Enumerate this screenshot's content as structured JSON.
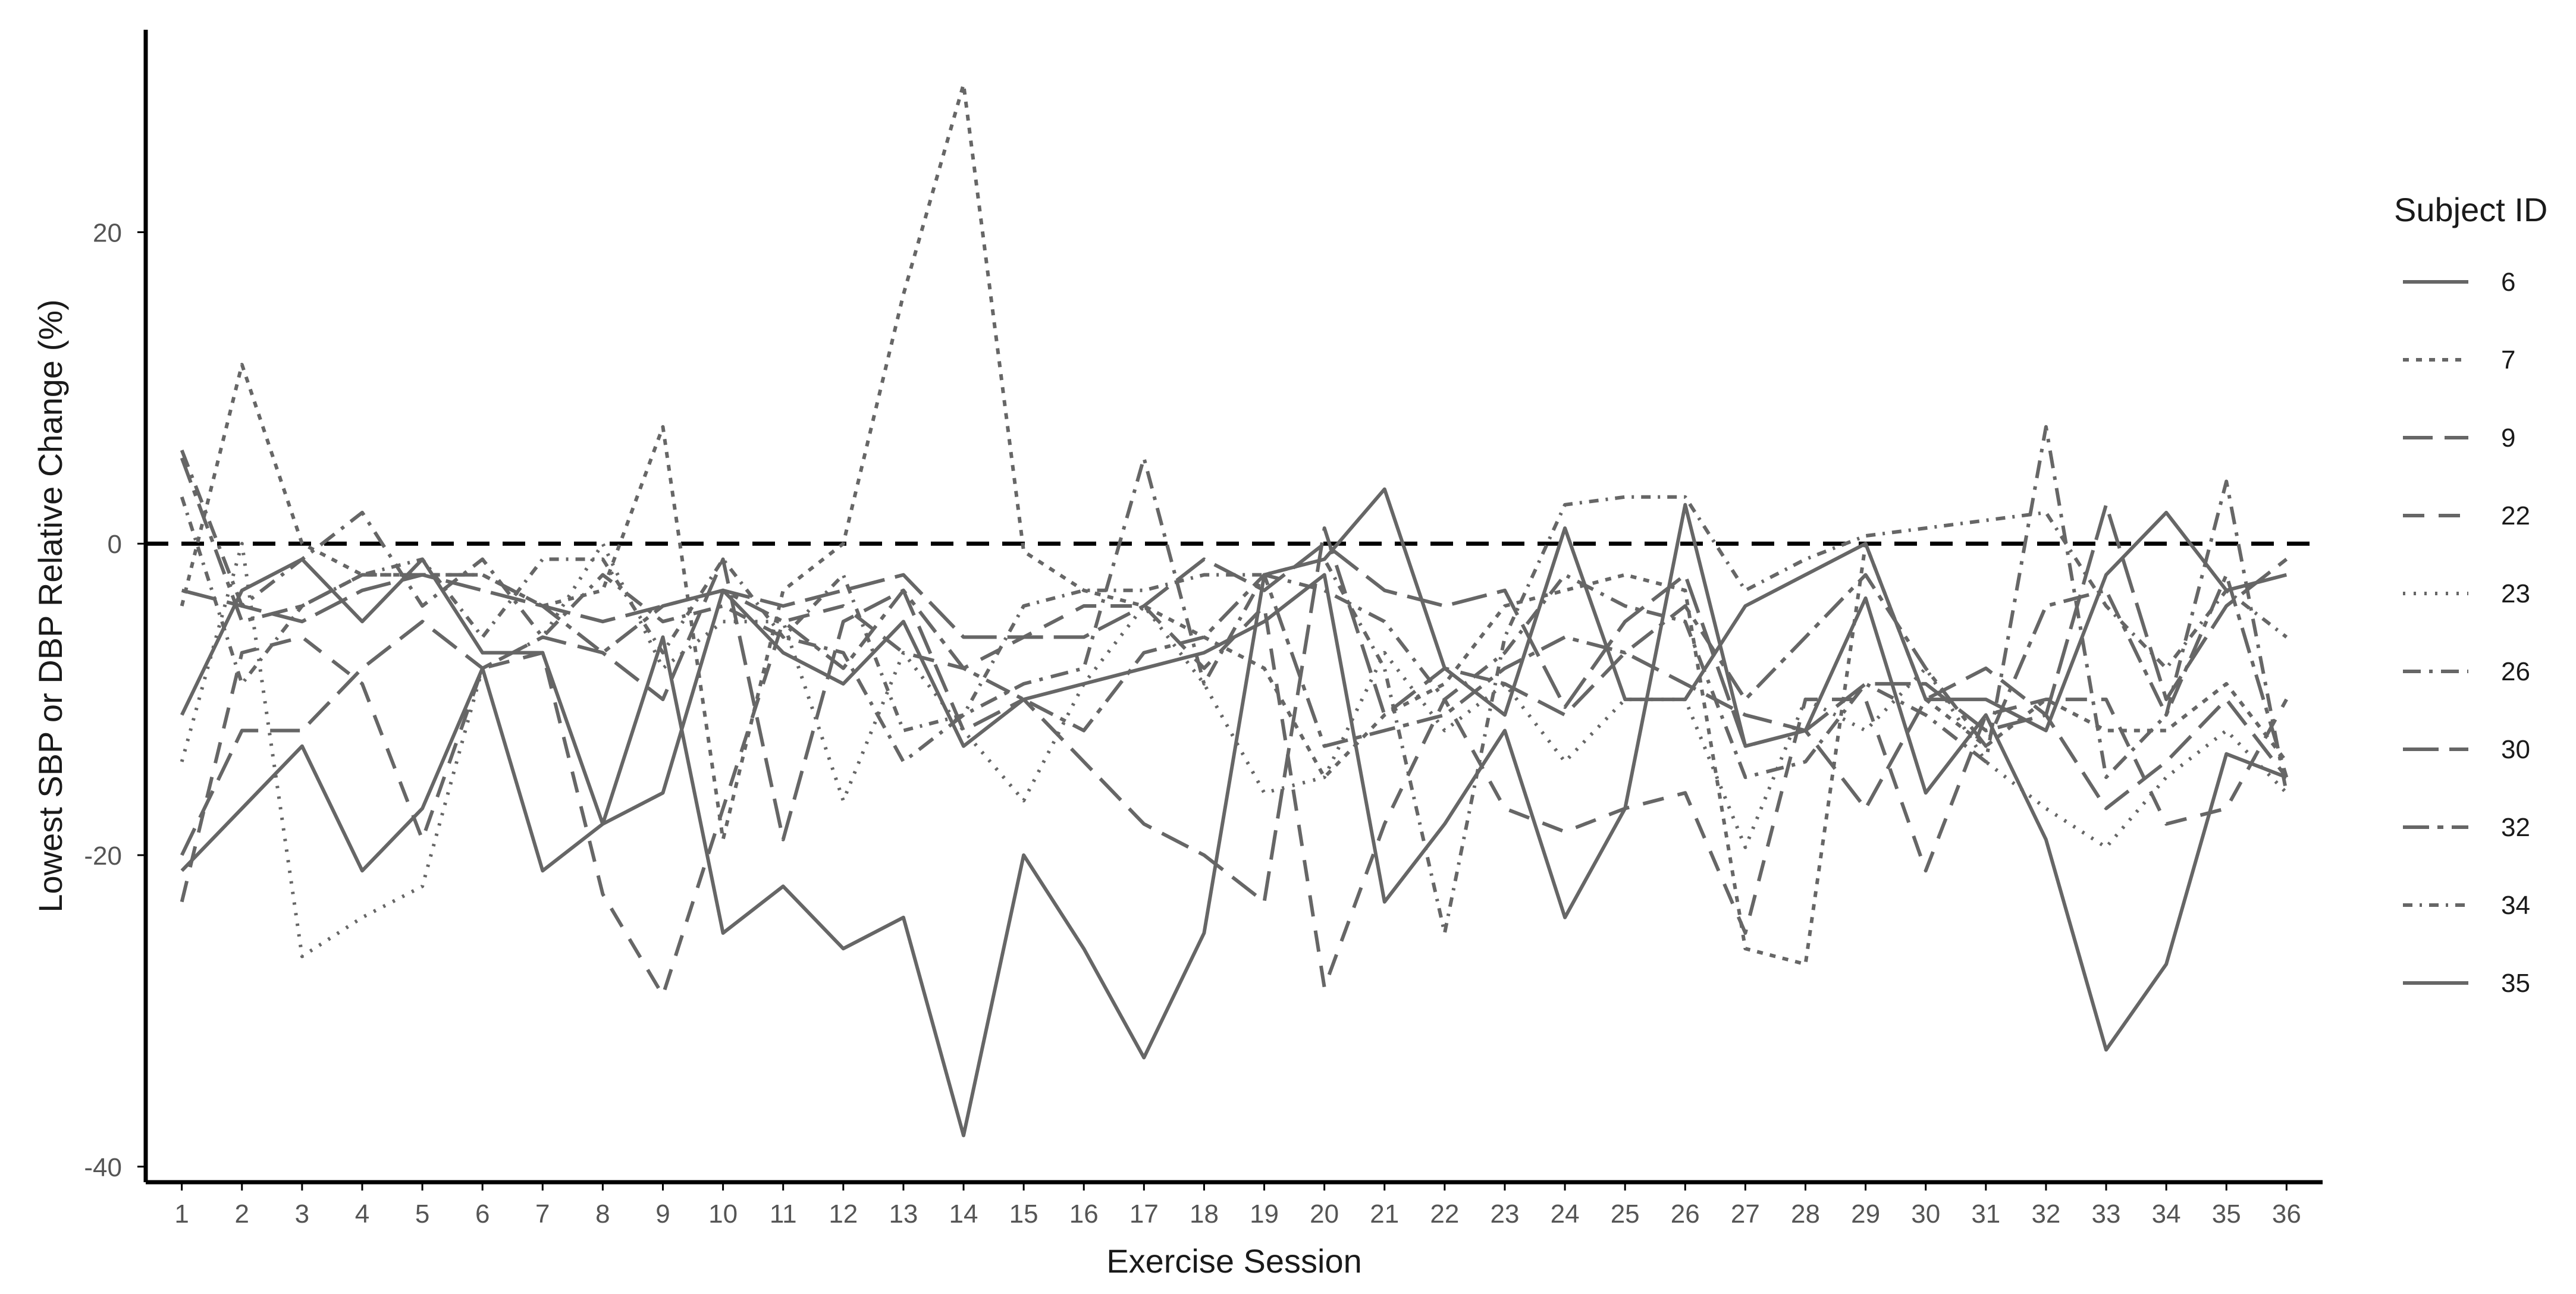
{
  "chart_data": {
    "type": "line",
    "xlabel": "Exercise Session",
    "ylabel": "Lowest SBP or DBP Relative Change (%)",
    "x": [
      1,
      2,
      3,
      4,
      5,
      6,
      7,
      8,
      9,
      10,
      11,
      12,
      13,
      14,
      15,
      16,
      17,
      18,
      19,
      20,
      21,
      22,
      23,
      24,
      25,
      26,
      27,
      28,
      29,
      30,
      31,
      32,
      33,
      34,
      35,
      36
    ],
    "xlim": [
      0.4,
      36.6
    ],
    "ylim": [
      -41,
      33
    ],
    "yticks": [
      20,
      0,
      -20,
      -40
    ],
    "grid": false,
    "reference_line": 0,
    "legend": {
      "title": "Subject ID",
      "position": "right"
    },
    "line_color": "#666666",
    "series": [
      {
        "name": "6",
        "dash": "solid",
        "values": [
          -11,
          -3,
          -1,
          -5,
          -1,
          -7,
          -7,
          -18,
          -6,
          -25,
          -22,
          -26,
          -24,
          -38,
          -20,
          -26,
          -33,
          -25,
          -2,
          -1,
          3.5,
          -8,
          -11,
          1,
          -10,
          -10,
          -4,
          -2,
          0,
          -10,
          -10,
          -12,
          -2,
          2,
          -3,
          -2
        ]
      },
      {
        "name": "7",
        "dash": "dotted-short",
        "values": [
          -4,
          11.5,
          0,
          -2,
          -2,
          -2,
          -4,
          -3,
          7.5,
          -19,
          -3,
          0,
          16,
          29.5,
          -0.5,
          -3,
          -4,
          -6,
          -8,
          -15,
          -11,
          -9,
          -4,
          -3,
          -2,
          -3,
          -26,
          -27,
          0,
          -10,
          -13,
          -10,
          -12,
          -12,
          -9,
          -14
        ]
      },
      {
        "name": "9",
        "dash": "dash-long",
        "values": [
          -20,
          -12,
          -12,
          -8,
          -5,
          -8,
          -6,
          -7,
          -10,
          -1,
          -19,
          -5,
          -3,
          -12,
          -10,
          -14,
          -18,
          -20,
          -23,
          1,
          -11,
          -8,
          -9,
          -11,
          -7,
          -9,
          -11,
          -12,
          -17,
          -10,
          -8,
          -11,
          -17,
          -14,
          -10,
          -15
        ]
      },
      {
        "name": "22",
        "dash": "dash-medium",
        "values": [
          -23,
          -7,
          -6,
          -9,
          -19,
          -8,
          -7,
          -22.5,
          -29,
          -17,
          -5,
          -4,
          -7,
          -8,
          -6,
          -4,
          -4,
          -8,
          -4,
          -28.5,
          -18,
          -10,
          -17,
          -18.5,
          -17,
          -16,
          -25,
          -10,
          -10,
          -21,
          -11,
          -10,
          -10,
          -18,
          -17,
          -10
        ]
      },
      {
        "name": "23",
        "dash": "dotted",
        "values": [
          -14,
          0,
          -26.5,
          -24,
          -22,
          -8,
          -6,
          0,
          -8,
          -5,
          -5,
          -16.5,
          -7,
          -12,
          -16.5,
          -9,
          -4,
          -9,
          -16,
          -15,
          -7,
          -12,
          -9,
          -14,
          -10,
          -10,
          -19.5,
          -10,
          -12,
          -8,
          -14,
          -17,
          -19.5,
          -15,
          -12,
          -16
        ]
      },
      {
        "name": "26",
        "dash": "dash-dot",
        "values": [
          6,
          -4,
          -1,
          2,
          -4,
          -1,
          -6,
          -2,
          -5,
          -4,
          -6,
          -7,
          -14,
          -11,
          -9,
          -8,
          5.5,
          -9,
          -2,
          -3,
          -5,
          -10,
          -7,
          -2,
          -4,
          -5,
          -15,
          -14,
          -9,
          -11,
          -14,
          7.5,
          -15,
          -11,
          4,
          -16
        ]
      },
      {
        "name": "30",
        "dash": "long-dash",
        "values": [
          -3,
          -4,
          -5,
          -3,
          -2,
          -3,
          -4,
          -5,
          -4,
          -3,
          -4,
          -3,
          -2,
          -6,
          -6,
          -6,
          -4,
          -1,
          -3,
          0,
          -3,
          -4,
          -3,
          -10.5,
          -5,
          -2,
          -13,
          -12,
          -9,
          -9,
          -12,
          -11,
          2.5,
          -10,
          -4,
          -1
        ]
      },
      {
        "name": "32",
        "dash": "dash-dot-long",
        "values": [
          5.5,
          -5,
          -4,
          -2,
          -2,
          -2,
          -4,
          -7,
          -4,
          -3,
          -5,
          -8,
          -3,
          -8,
          -10,
          -12,
          -7,
          -6,
          -2,
          -13,
          -12,
          -11,
          -8,
          -6,
          -7,
          -4,
          -10,
          -6,
          -2,
          -8,
          -13,
          -4,
          -3,
          -11,
          -2,
          -15
        ]
      },
      {
        "name": "34",
        "dash": "dash-dot-short",
        "values": [
          3,
          -9,
          -4,
          -2,
          -1,
          -6,
          -1,
          -1,
          -7,
          -1,
          -6,
          -2,
          -12,
          -11,
          -4,
          -3,
          -3,
          -2,
          -2,
          -1,
          -8,
          -25,
          -6,
          2.5,
          3,
          3,
          -3,
          -1,
          0.5,
          1,
          1.5,
          2,
          -4,
          -8,
          -3,
          -6
        ]
      },
      {
        "name": "35",
        "dash": "solid",
        "values": [
          -21,
          -17,
          -13,
          -21,
          -17,
          -8,
          -21,
          -18,
          -16,
          -3,
          -7,
          -9,
          -5,
          -13,
          -10,
          -9,
          -8,
          -7,
          -5,
          -2,
          -23,
          -18,
          -12,
          -24,
          -17,
          2.5,
          -13,
          -12,
          -3.5,
          -16,
          -11,
          -19,
          -32.5,
          -27,
          -13.5,
          -15
        ]
      }
    ]
  }
}
